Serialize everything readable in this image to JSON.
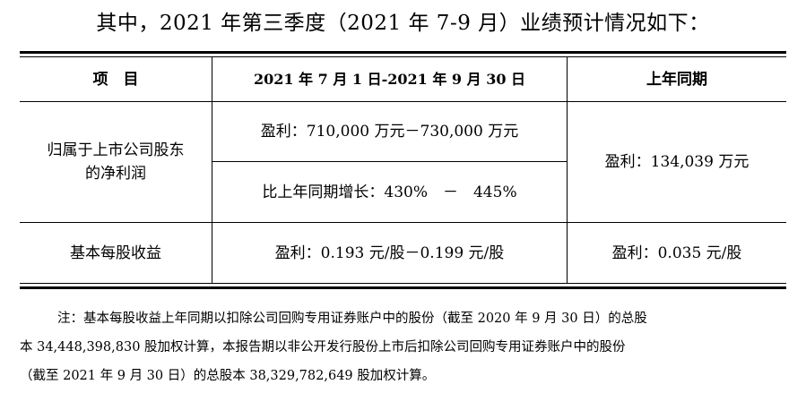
{
  "heading": "其中，2021 年第三季度（2021 年 7-9 月）业绩预计情况如下：",
  "table": {
    "headers": {
      "item": "项　目",
      "period": "2021 年 7 月 1 日-2021 年 9 月 30 日",
      "prior": "上年同期"
    },
    "rows": [
      {
        "label_line1": "归属于上市公司股东",
        "label_line2": "的净利润",
        "current_profit": "盈利：710,000 万元－730,000 万元",
        "current_growth": "比上年同期增长：430%　－　445%",
        "prior": "盈利：134,039 万元"
      },
      {
        "label": "基本每股收益",
        "current": "盈利：0.193 元/股－0.199 元/股",
        "prior": "盈利：0.035 元/股"
      }
    ]
  },
  "note": {
    "line1": "注：基本每股收益上年同期以扣除公司回购专用证券账户中的股份（截至 2020 年 9 月 30 日）的总股",
    "line2": "本 34,448,398,830 股加权计算，本报告期以非公开发行股份上市后扣除公司回购专用证券账户中的股份",
    "line3": "（截至 2021 年 9 月 30 日）的总股本 38,329,782,649 股加权计算。"
  }
}
